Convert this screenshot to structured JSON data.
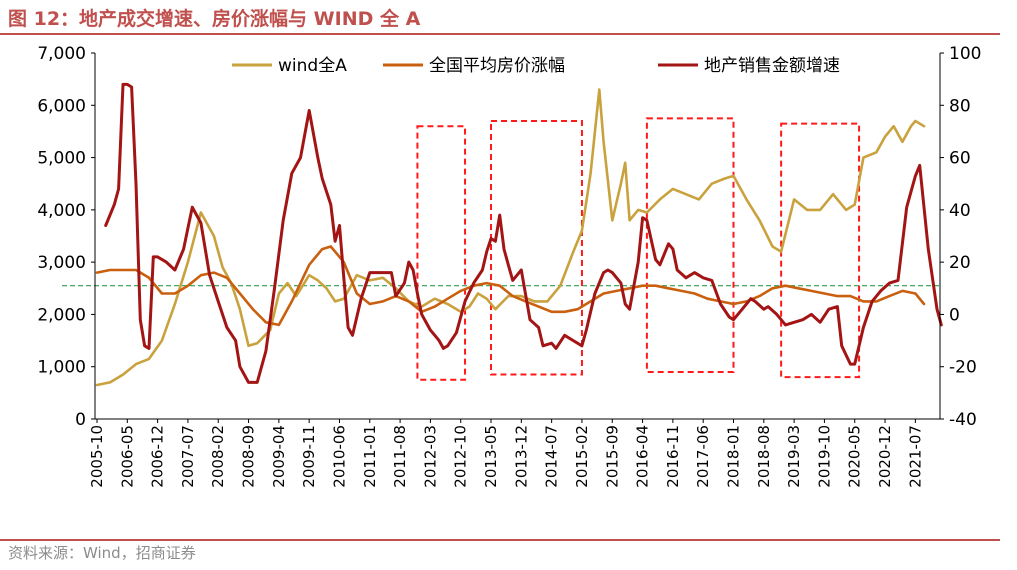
{
  "header": {
    "title": "图 12：地产成交增速、房价涨幅与 WIND 全 A"
  },
  "footer": {
    "source": "资料来源：Wind，招商证券"
  },
  "chart_data": {
    "type": "line",
    "x_labels": [
      "2005-10",
      "2006-05",
      "2006-12",
      "2007-07",
      "2008-02",
      "2008-09",
      "2009-04",
      "2009-11",
      "2010-06",
      "2011-01",
      "2011-08",
      "2012-03",
      "2012-10",
      "2013-05",
      "2013-12",
      "2014-07",
      "2015-02",
      "2015-09",
      "2016-04",
      "2016-11",
      "2017-06",
      "2018-01",
      "2018-08",
      "2019-03",
      "2019-10",
      "2020-05",
      "2020-12",
      "2021-07"
    ],
    "y_left": {
      "min": 0,
      "max": 7000,
      "ticks": [
        0,
        1000,
        2000,
        3000,
        4000,
        5000,
        6000,
        7000
      ],
      "tick_labels": [
        "0",
        "1,000",
        "2,000",
        "3,000",
        "4,000",
        "5,000",
        "6,000",
        "7,000"
      ]
    },
    "y_right": {
      "min": -40,
      "max": 100,
      "ticks": [
        -40,
        -20,
        0,
        20,
        40,
        60,
        80,
        100
      ],
      "tick_labels": [
        "-40",
        "-20",
        "0",
        "20",
        "40",
        "60",
        "80",
        "100"
      ]
    },
    "legend": {
      "placement": "top"
    },
    "reference_line": {
      "axis": "left",
      "value": 2550,
      "color": "#2e9e4f",
      "style": "dashed"
    },
    "highlight_boxes": [
      {
        "x_start": "2011-12",
        "x_end": "2012-11",
        "y_top": 72,
        "y_bottom": -25
      },
      {
        "x_start": "2013-05",
        "x_end": "2015-02",
        "y_top": 74,
        "y_bottom": -23
      },
      {
        "x_start": "2016-05",
        "x_end": "2018-01",
        "y_top": 75,
        "y_bottom": -22
      },
      {
        "x_start": "2018-12",
        "x_end": "2020-06",
        "y_top": 73,
        "y_bottom": -24
      }
    ],
    "series": [
      {
        "name": "wind全A",
        "axis": "left",
        "color": "#c9a23e",
        "points": [
          [
            "2005-10",
            650
          ],
          [
            "2006-01",
            700
          ],
          [
            "2006-04",
            850
          ],
          [
            "2006-07",
            1050
          ],
          [
            "2006-10",
            1150
          ],
          [
            "2007-01",
            1500
          ],
          [
            "2007-04",
            2200
          ],
          [
            "2007-07",
            3000
          ],
          [
            "2007-10",
            3950
          ],
          [
            "2008-01",
            3500
          ],
          [
            "2008-03",
            2900
          ],
          [
            "2008-05",
            2600
          ],
          [
            "2008-07",
            2100
          ],
          [
            "2008-09",
            1400
          ],
          [
            "2008-11",
            1450
          ],
          [
            "2009-02",
            1700
          ],
          [
            "2009-04",
            2400
          ],
          [
            "2009-06",
            2600
          ],
          [
            "2009-08",
            2350
          ],
          [
            "2009-11",
            2750
          ],
          [
            "2010-01",
            2650
          ],
          [
            "2010-03",
            2500
          ],
          [
            "2010-05",
            2250
          ],
          [
            "2010-07",
            2300
          ],
          [
            "2010-10",
            2750
          ],
          [
            "2011-01",
            2650
          ],
          [
            "2011-04",
            2700
          ],
          [
            "2011-07",
            2500
          ],
          [
            "2011-10",
            2250
          ],
          [
            "2012-01",
            2150
          ],
          [
            "2012-04",
            2300
          ],
          [
            "2012-07",
            2200
          ],
          [
            "2012-10",
            2050
          ],
          [
            "2012-12",
            2150
          ],
          [
            "2013-02",
            2400
          ],
          [
            "2013-04",
            2300
          ],
          [
            "2013-06",
            2100
          ],
          [
            "2013-09",
            2350
          ],
          [
            "2013-12",
            2350
          ],
          [
            "2014-03",
            2250
          ],
          [
            "2014-06",
            2250
          ],
          [
            "2014-09",
            2550
          ],
          [
            "2014-12",
            3200
          ],
          [
            "2015-02",
            3600
          ],
          [
            "2015-04",
            4700
          ],
          [
            "2015-06",
            6300
          ],
          [
            "2015-07",
            5300
          ],
          [
            "2015-09",
            3800
          ],
          [
            "2015-11",
            4500
          ],
          [
            "2015-12",
            4900
          ],
          [
            "2016-01",
            3800
          ],
          [
            "2016-03",
            4000
          ],
          [
            "2016-05",
            3950
          ],
          [
            "2016-08",
            4200
          ],
          [
            "2016-11",
            4400
          ],
          [
            "2017-02",
            4300
          ],
          [
            "2017-05",
            4200
          ],
          [
            "2017-08",
            4500
          ],
          [
            "2017-11",
            4600
          ],
          [
            "2018-01",
            4650
          ],
          [
            "2018-04",
            4200
          ],
          [
            "2018-07",
            3800
          ],
          [
            "2018-10",
            3300
          ],
          [
            "2018-12",
            3200
          ],
          [
            "2019-03",
            4200
          ],
          [
            "2019-06",
            4000
          ],
          [
            "2019-09",
            4000
          ],
          [
            "2019-12",
            4300
          ],
          [
            "2020-03",
            4000
          ],
          [
            "2020-05",
            4100
          ],
          [
            "2020-07",
            5000
          ],
          [
            "2020-10",
            5100
          ],
          [
            "2020-12",
            5400
          ],
          [
            "2021-02",
            5600
          ],
          [
            "2021-04",
            5300
          ],
          [
            "2021-06",
            5600
          ],
          [
            "2021-07",
            5700
          ],
          [
            "2021-09",
            5600
          ]
        ]
      },
      {
        "name": "全国平均房价涨幅",
        "axis": "right",
        "color": "#c8600f",
        "points": [
          [
            "2005-10",
            16
          ],
          [
            "2006-01",
            17
          ],
          [
            "2006-04",
            17
          ],
          [
            "2006-07",
            17
          ],
          [
            "2006-10",
            14
          ],
          [
            "2007-01",
            8
          ],
          [
            "2007-04",
            8
          ],
          [
            "2007-07",
            11
          ],
          [
            "2007-10",
            15
          ],
          [
            "2008-01",
            16
          ],
          [
            "2008-04",
            14
          ],
          [
            "2008-07",
            8
          ],
          [
            "2008-10",
            2
          ],
          [
            "2009-01",
            -3
          ],
          [
            "2009-04",
            -4
          ],
          [
            "2009-07",
            5
          ],
          [
            "2009-11",
            19
          ],
          [
            "2010-02",
            25
          ],
          [
            "2010-04",
            26
          ],
          [
            "2010-07",
            20
          ],
          [
            "2010-10",
            8
          ],
          [
            "2011-01",
            4
          ],
          [
            "2011-04",
            5
          ],
          [
            "2011-07",
            7
          ],
          [
            "2011-10",
            5
          ],
          [
            "2012-01",
            1
          ],
          [
            "2012-04",
            3
          ],
          [
            "2012-07",
            6
          ],
          [
            "2012-10",
            9
          ],
          [
            "2013-01",
            11
          ],
          [
            "2013-04",
            12
          ],
          [
            "2013-07",
            11
          ],
          [
            "2013-10",
            7
          ],
          [
            "2014-01",
            5
          ],
          [
            "2014-04",
            3
          ],
          [
            "2014-07",
            1
          ],
          [
            "2014-10",
            1
          ],
          [
            "2015-01",
            2
          ],
          [
            "2015-04",
            5
          ],
          [
            "2015-07",
            8
          ],
          [
            "2015-10",
            9
          ],
          [
            "2016-01",
            10
          ],
          [
            "2016-04",
            11
          ],
          [
            "2016-07",
            11
          ],
          [
            "2016-10",
            10
          ],
          [
            "2017-01",
            9
          ],
          [
            "2017-04",
            8
          ],
          [
            "2017-07",
            6
          ],
          [
            "2017-10",
            5
          ],
          [
            "2018-01",
            4
          ],
          [
            "2018-04",
            5
          ],
          [
            "2018-07",
            7
          ],
          [
            "2018-10",
            10
          ],
          [
            "2019-01",
            11
          ],
          [
            "2019-04",
            10
          ],
          [
            "2019-07",
            9
          ],
          [
            "2019-10",
            8
          ],
          [
            "2020-01",
            7
          ],
          [
            "2020-04",
            7
          ],
          [
            "2020-07",
            5
          ],
          [
            "2020-10",
            5
          ],
          [
            "2021-01",
            7
          ],
          [
            "2021-04",
            9
          ],
          [
            "2021-07",
            8
          ],
          [
            "2021-09",
            4
          ]
        ]
      },
      {
        "name": "地产销售金额增速",
        "axis": "right",
        "color": "#a31515",
        "points": [
          [
            "2005-12",
            34
          ],
          [
            "2006-02",
            42
          ],
          [
            "2006-03",
            48
          ],
          [
            "2006-04",
            88
          ],
          [
            "2006-05",
            88
          ],
          [
            "2006-06",
            87
          ],
          [
            "2006-07",
            50
          ],
          [
            "2006-08",
            -2
          ],
          [
            "2006-09",
            -12
          ],
          [
            "2006-10",
            -13
          ],
          [
            "2006-11",
            22
          ],
          [
            "2006-12",
            22
          ],
          [
            "2007-02",
            20
          ],
          [
            "2007-04",
            17
          ],
          [
            "2007-06",
            25
          ],
          [
            "2007-07",
            33
          ],
          [
            "2007-08",
            41
          ],
          [
            "2007-09",
            38
          ],
          [
            "2007-10",
            35
          ],
          [
            "2007-12",
            15
          ],
          [
            "2008-02",
            5
          ],
          [
            "2008-04",
            -5
          ],
          [
            "2008-06",
            -10
          ],
          [
            "2008-07",
            -20
          ],
          [
            "2008-09",
            -26
          ],
          [
            "2008-11",
            -26
          ],
          [
            "2009-01",
            -14
          ],
          [
            "2009-03",
            10
          ],
          [
            "2009-05",
            36
          ],
          [
            "2009-07",
            54
          ],
          [
            "2009-09",
            60
          ],
          [
            "2009-11",
            78
          ],
          [
            "2010-01",
            60
          ],
          [
            "2010-02",
            52
          ],
          [
            "2010-04",
            42
          ],
          [
            "2010-05",
            28
          ],
          [
            "2010-06",
            34
          ],
          [
            "2010-07",
            14
          ],
          [
            "2010-08",
            -5
          ],
          [
            "2010-09",
            -8
          ],
          [
            "2010-11",
            6
          ],
          [
            "2011-01",
            16
          ],
          [
            "2011-04",
            16
          ],
          [
            "2011-06",
            16
          ],
          [
            "2011-07",
            7
          ],
          [
            "2011-09",
            12
          ],
          [
            "2011-10",
            20
          ],
          [
            "2011-11",
            17
          ],
          [
            "2011-12",
            8
          ],
          [
            "2012-01",
            0
          ],
          [
            "2012-03",
            -6
          ],
          [
            "2012-05",
            -10
          ],
          [
            "2012-06",
            -13
          ],
          [
            "2012-07",
            -12
          ],
          [
            "2012-09",
            -7
          ],
          [
            "2012-11",
            5
          ],
          [
            "2013-01",
            12
          ],
          [
            "2013-03",
            17
          ],
          [
            "2013-04",
            24
          ],
          [
            "2013-05",
            29
          ],
          [
            "2013-06",
            28
          ],
          [
            "2013-07",
            38
          ],
          [
            "2013-08",
            25
          ],
          [
            "2013-09",
            19
          ],
          [
            "2013-10",
            13
          ],
          [
            "2013-11",
            15
          ],
          [
            "2013-12",
            17
          ],
          [
            "2014-02",
            -2
          ],
          [
            "2014-04",
            -5
          ],
          [
            "2014-05",
            -12
          ],
          [
            "2014-07",
            -11
          ],
          [
            "2014-08",
            -13
          ],
          [
            "2014-10",
            -8
          ],
          [
            "2014-12",
            -10
          ],
          [
            "2015-02",
            -12
          ],
          [
            "2015-03",
            -6
          ],
          [
            "2015-05",
            8
          ],
          [
            "2015-07",
            16
          ],
          [
            "2015-08",
            17
          ],
          [
            "2015-09",
            16
          ],
          [
            "2015-11",
            12
          ],
          [
            "2015-12",
            4
          ],
          [
            "2016-01",
            2
          ],
          [
            "2016-03",
            20
          ],
          [
            "2016-04",
            37
          ],
          [
            "2016-05",
            36
          ],
          [
            "2016-07",
            21
          ],
          [
            "2016-08",
            19
          ],
          [
            "2016-10",
            27
          ],
          [
            "2016-11",
            25
          ],
          [
            "2016-12",
            17
          ],
          [
            "2017-02",
            14
          ],
          [
            "2017-04",
            16
          ],
          [
            "2017-06",
            14
          ],
          [
            "2017-08",
            13
          ],
          [
            "2017-10",
            4
          ],
          [
            "2017-12",
            -1
          ],
          [
            "2018-01",
            -2
          ],
          [
            "2018-03",
            2
          ],
          [
            "2018-05",
            6
          ],
          [
            "2018-06",
            5
          ],
          [
            "2018-08",
            2
          ],
          [
            "2018-09",
            3
          ],
          [
            "2018-11",
            0
          ],
          [
            "2019-01",
            -4
          ],
          [
            "2019-03",
            -3
          ],
          [
            "2019-05",
            -2
          ],
          [
            "2019-07",
            0
          ],
          [
            "2019-09",
            -3
          ],
          [
            "2019-11",
            2
          ],
          [
            "2020-01",
            3
          ],
          [
            "2020-02",
            -12
          ],
          [
            "2020-04",
            -19
          ],
          [
            "2020-05",
            -19
          ],
          [
            "2020-07",
            -5
          ],
          [
            "2020-09",
            5
          ],
          [
            "2020-11",
            9
          ],
          [
            "2021-01",
            12
          ],
          [
            "2021-03",
            13
          ],
          [
            "2021-05",
            41
          ],
          [
            "2021-07",
            53
          ],
          [
            "2021-08",
            57
          ],
          [
            "2021-10",
            25
          ],
          [
            "2021-12",
            2
          ],
          [
            "2022-01",
            -4
          ]
        ]
      }
    ]
  }
}
